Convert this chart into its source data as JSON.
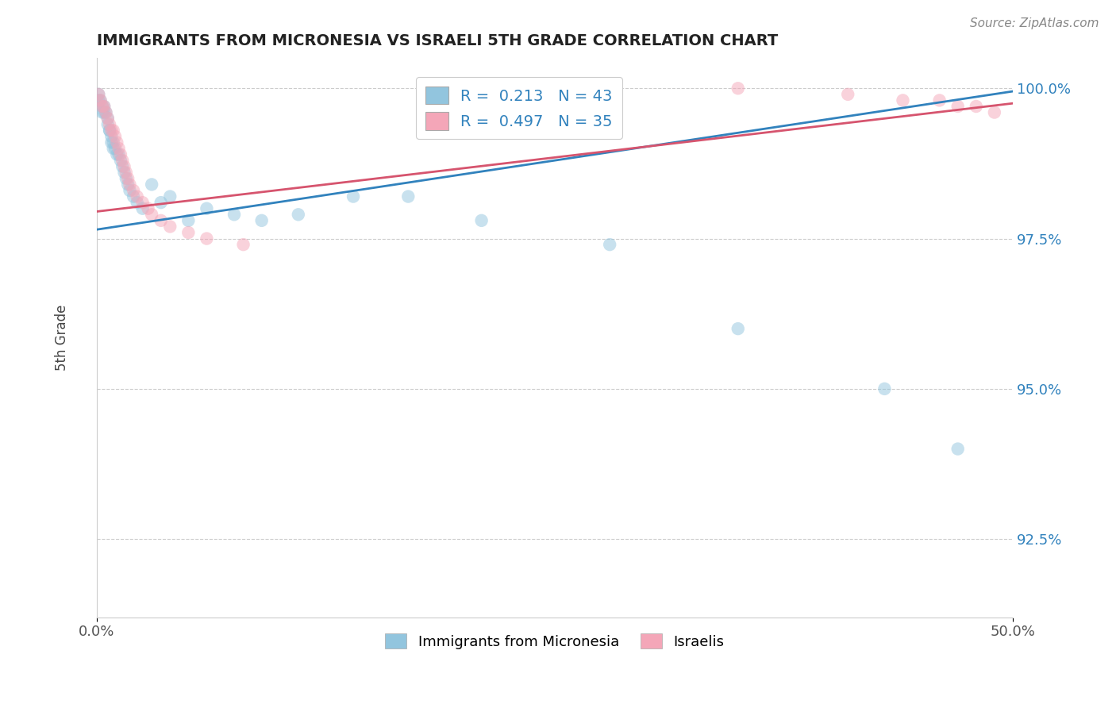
{
  "title": "IMMIGRANTS FROM MICRONESIA VS ISRAELI 5TH GRADE CORRELATION CHART",
  "source": "Source: ZipAtlas.com",
  "ylabel": "5th Grade",
  "xlim": [
    0.0,
    0.5
  ],
  "ylim": [
    0.912,
    1.005
  ],
  "xtick_positions": [
    0.0,
    0.5
  ],
  "xtick_labels": [
    "0.0%",
    "50.0%"
  ],
  "ytick_values": [
    0.925,
    0.95,
    0.975,
    1.0
  ],
  "ytick_labels": [
    "92.5%",
    "95.0%",
    "97.5%",
    "100.0%"
  ],
  "legend_label1": "Immigrants from Micronesia",
  "legend_label2": "Israelis",
  "R1": "0.213",
  "N1": "43",
  "R2": "0.497",
  "N2": "35",
  "color_blue": "#92c5de",
  "color_pink": "#f4a6b8",
  "line_color_blue": "#3182bd",
  "line_color_pink": "#d6546e",
  "blue_points_x": [
    0.001,
    0.001,
    0.002,
    0.003,
    0.003,
    0.004,
    0.004,
    0.005,
    0.006,
    0.006,
    0.007,
    0.007,
    0.008,
    0.008,
    0.009,
    0.009,
    0.01,
    0.011,
    0.012,
    0.013,
    0.014,
    0.015,
    0.016,
    0.017,
    0.018,
    0.02,
    0.022,
    0.025,
    0.03,
    0.035,
    0.04,
    0.05,
    0.06,
    0.075,
    0.09,
    0.11,
    0.14,
    0.17,
    0.21,
    0.28,
    0.35,
    0.43,
    0.47
  ],
  "blue_points_y": [
    0.999,
    0.998,
    0.998,
    0.997,
    0.996,
    0.997,
    0.996,
    0.996,
    0.995,
    0.994,
    0.993,
    0.993,
    0.992,
    0.991,
    0.991,
    0.99,
    0.99,
    0.989,
    0.989,
    0.988,
    0.987,
    0.986,
    0.985,
    0.984,
    0.983,
    0.982,
    0.981,
    0.98,
    0.984,
    0.981,
    0.982,
    0.978,
    0.98,
    0.979,
    0.978,
    0.979,
    0.982,
    0.982,
    0.978,
    0.974,
    0.96,
    0.95,
    0.94
  ],
  "pink_points_x": [
    0.001,
    0.002,
    0.003,
    0.004,
    0.005,
    0.006,
    0.007,
    0.008,
    0.009,
    0.01,
    0.011,
    0.012,
    0.013,
    0.014,
    0.015,
    0.016,
    0.017,
    0.018,
    0.02,
    0.022,
    0.025,
    0.028,
    0.03,
    0.035,
    0.04,
    0.05,
    0.06,
    0.08,
    0.35,
    0.41,
    0.44,
    0.46,
    0.47,
    0.48,
    0.49
  ],
  "pink_points_y": [
    0.999,
    0.998,
    0.997,
    0.997,
    0.996,
    0.995,
    0.994,
    0.993,
    0.993,
    0.992,
    0.991,
    0.99,
    0.989,
    0.988,
    0.987,
    0.986,
    0.985,
    0.984,
    0.983,
    0.982,
    0.981,
    0.98,
    0.979,
    0.978,
    0.977,
    0.976,
    0.975,
    0.974,
    1.0,
    0.999,
    0.998,
    0.998,
    0.997,
    0.997,
    0.996
  ]
}
